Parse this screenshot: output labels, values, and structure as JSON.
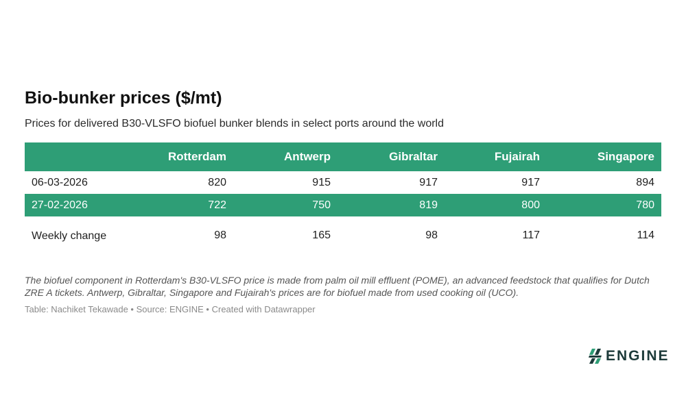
{
  "title": "Bio-bunker prices ($/mt)",
  "subtitle": "Prices for delivered B30-VLSFO biofuel bunker blends in select ports around the world",
  "colors": {
    "accent": "#2e9e76",
    "logo": "#1d3b3a"
  },
  "chart_data": {
    "type": "table",
    "columns": [
      "",
      "Rotterdam",
      "Antwerp",
      "Gibraltar",
      "Fujairah",
      "Singapore"
    ],
    "rows": [
      {
        "label": "06-03-2026",
        "values": [
          820,
          915,
          917,
          917,
          894
        ]
      },
      {
        "label": "27-02-2026",
        "values": [
          722,
          750,
          819,
          800,
          780
        ]
      },
      {
        "label": "Weekly change",
        "values": [
          98,
          165,
          98,
          117,
          114
        ]
      }
    ]
  },
  "note": "The biofuel component in Rotterdam's B30-VLSFO price is made from palm oil mill effluent (POME), an advanced feedstock that qualifies for Dutch ZRE A tickets. Antwerp, Gibraltar, Singapore and Fujairah's prices are for biofuel made from used cooking oil (UCO).",
  "credit": "Table: Nachiket Tekawade • Source: ENGINE • Created with Datawrapper",
  "logo": {
    "icon": "engine-logo-icon",
    "text": "ENGINE"
  }
}
